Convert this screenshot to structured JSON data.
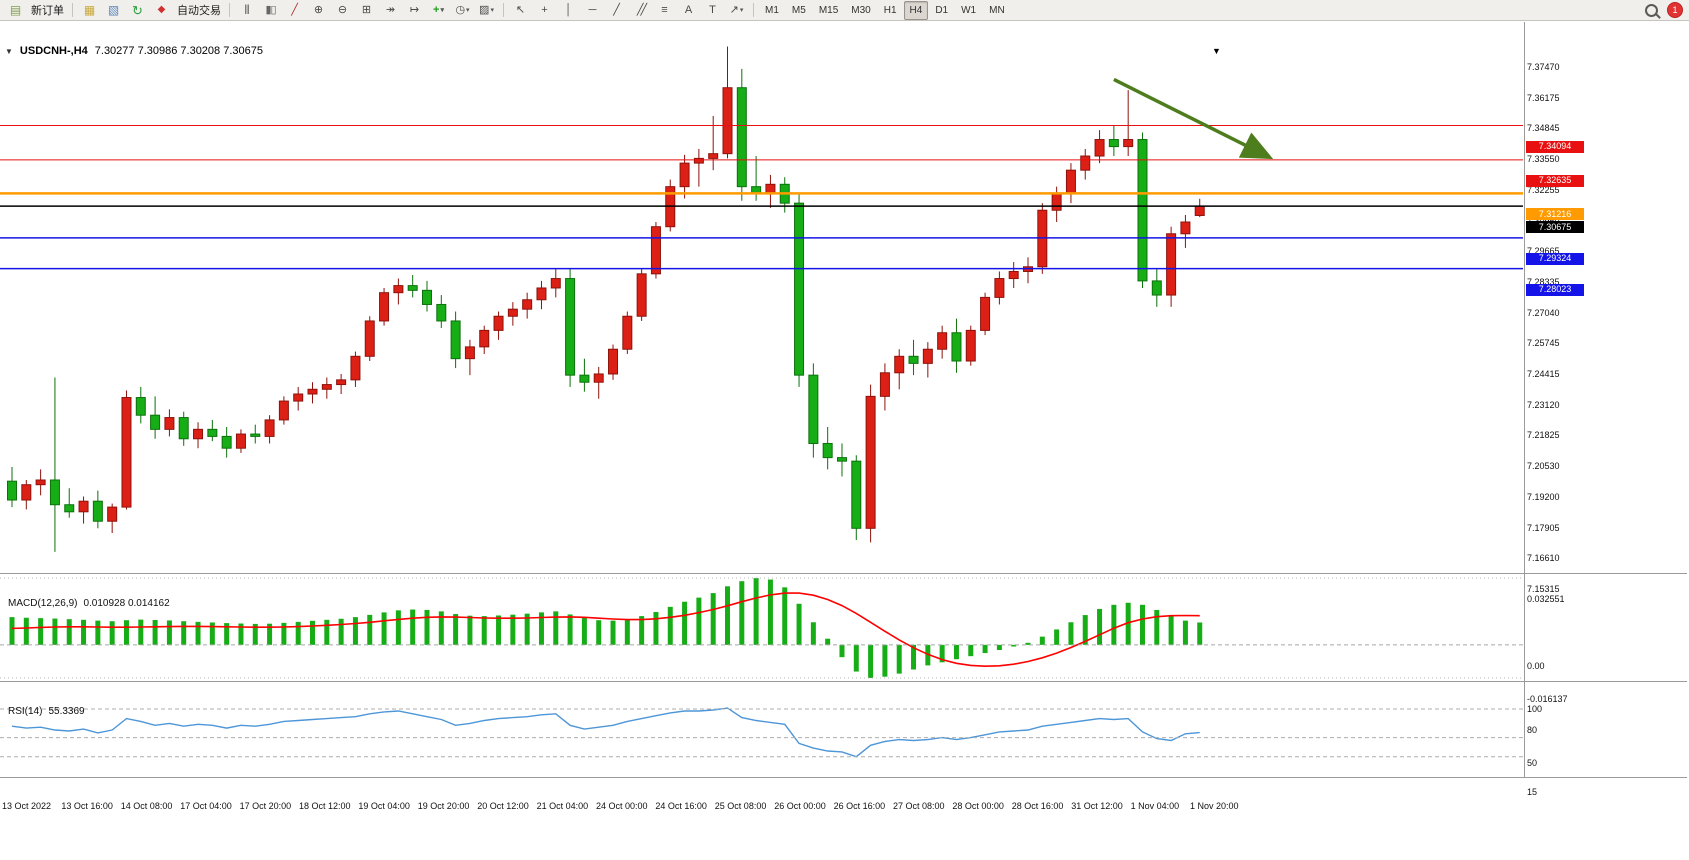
{
  "toolbar": {
    "new_order_label": "新订单",
    "autotrade_label": "自动交易",
    "notification_count": "1",
    "timeframes": [
      "M1",
      "M5",
      "M15",
      "M30",
      "H1",
      "H4",
      "D1",
      "W1",
      "MN"
    ],
    "active_timeframe": "H4",
    "icons": {
      "new_order": "▤",
      "charts": "▦",
      "profile": "▧",
      "refresh": "↻",
      "autotrade": "◆",
      "bar_chart": "|||",
      "candle_chart": "▮▯",
      "line_chart": "╱",
      "zoom_in": "⊕",
      "zoom_out": "⊖",
      "tile_windows": "⊞",
      "auto_scroll": "↠",
      "chart_shift": "↦",
      "indicators": "+",
      "periods": "◷",
      "templates": "▨",
      "cursor": "↖",
      "crosshair": "+",
      "vertical_line": "│",
      "horizontal_line": "─",
      "trendline": "╱",
      "channel": "╱╱",
      "fibonacci": "≡",
      "text": "A",
      "text_label": "T",
      "arrows": "↗",
      "dropdown": "▾",
      "oneclick_toggle": "▼",
      "shift_marker": "▼"
    }
  },
  "chart_window": {
    "symbol_tf": "USDCNH-,H4",
    "ohlc": "7.30277 7.30986 7.30208 7.30675"
  },
  "chart_data": [
    {
      "type": "candlestick",
      "symbol": "USDCNH-",
      "timeframe": "H4",
      "last_ohlc": {
        "open": "7.30277",
        "high": "7.30986",
        "low": "7.30208",
        "close": "7.30675"
      },
      "ylim": [
        7.15315,
        7.3747
      ],
      "y_ticks": [
        "7.37470",
        "7.36175",
        "7.34845",
        "7.33550",
        "7.32255",
        "7.30960",
        "7.29665",
        "7.28335",
        "7.27040",
        "7.25745",
        "7.24415",
        "7.23120",
        "7.21825",
        "7.20530",
        "7.19200",
        "7.17905",
        "7.16610",
        "7.15315"
      ],
      "x_labels": [
        "13 Oct 2022",
        "13 Oct 16:00",
        "14 Oct 08:00",
        "17 Oct 04:00",
        "17 Oct 20:00",
        "18 Oct 12:00",
        "19 Oct 04:00",
        "19 Oct 20:00",
        "20 Oct 12:00",
        "21 Oct 04:00",
        "24 Oct 00:00",
        "24 Oct 16:00",
        "25 Oct 08:00",
        "26 Oct 00:00",
        "26 Oct 16:00",
        "27 Oct 08:00",
        "28 Oct 00:00",
        "28 Oct 16:00",
        "31 Oct 12:00",
        "1 Nov 04:00",
        "1 Nov 20:00"
      ],
      "up_color": "#dd2015",
      "down_color": "#17ad17",
      "candles": [
        [
          7.19,
          7.196,
          7.179,
          7.182
        ],
        [
          7.182,
          7.1905,
          7.178,
          7.1885
        ],
        [
          7.1885,
          7.195,
          7.184,
          7.1905
        ],
        [
          7.1905,
          7.234,
          7.16,
          7.18
        ],
        [
          7.18,
          7.187,
          7.1745,
          7.177
        ],
        [
          7.177,
          7.1835,
          7.172,
          7.1815
        ],
        [
          7.1815,
          7.186,
          7.17,
          7.173
        ],
        [
          7.173,
          7.1805,
          7.168,
          7.179
        ],
        [
          7.179,
          7.2285,
          7.178,
          7.2255
        ],
        [
          7.2255,
          7.23,
          7.2145,
          7.218
        ],
        [
          7.218,
          7.226,
          7.208,
          7.212
        ],
        [
          7.212,
          7.2205,
          7.209,
          7.217
        ],
        [
          7.217,
          7.2195,
          7.205,
          7.208
        ],
        [
          7.208,
          7.215,
          7.204,
          7.212
        ],
        [
          7.212,
          7.216,
          7.207,
          7.209
        ],
        [
          7.209,
          7.213,
          7.2,
          7.204
        ],
        [
          7.204,
          7.212,
          7.202,
          7.21
        ],
        [
          7.21,
          7.214,
          7.206,
          7.209
        ],
        [
          7.209,
          7.218,
          7.206,
          7.216
        ],
        [
          7.216,
          7.226,
          7.214,
          7.224
        ],
        [
          7.224,
          7.23,
          7.22,
          7.227
        ],
        [
          7.227,
          7.232,
          7.223,
          7.229
        ],
        [
          7.229,
          7.234,
          7.225,
          7.231
        ],
        [
          7.231,
          7.2355,
          7.227,
          7.233
        ],
        [
          7.233,
          7.245,
          7.23,
          7.243
        ],
        [
          7.243,
          7.26,
          7.241,
          7.258
        ],
        [
          7.258,
          7.272,
          7.256,
          7.27
        ],
        [
          7.27,
          7.276,
          7.265,
          7.273
        ],
        [
          7.273,
          7.2775,
          7.268,
          7.271
        ],
        [
          7.271,
          7.275,
          7.262,
          7.265
        ],
        [
          7.265,
          7.269,
          7.255,
          7.258
        ],
        [
          7.258,
          7.262,
          7.238,
          7.242
        ],
        [
          7.242,
          7.25,
          7.235,
          7.247
        ],
        [
          7.247,
          7.256,
          7.244,
          7.254
        ],
        [
          7.254,
          7.262,
          7.25,
          7.26
        ],
        [
          7.26,
          7.266,
          7.256,
          7.263
        ],
        [
          7.263,
          7.27,
          7.259,
          7.267
        ],
        [
          7.267,
          7.275,
          7.263,
          7.272
        ],
        [
          7.272,
          7.28,
          7.268,
          7.276
        ],
        [
          7.276,
          7.2805,
          7.23,
          7.235
        ],
        [
          7.235,
          7.242,
          7.228,
          7.232
        ],
        [
          7.232,
          7.2385,
          7.225,
          7.2355
        ],
        [
          7.2355,
          7.248,
          7.233,
          7.246
        ],
        [
          7.246,
          7.262,
          7.244,
          7.26
        ],
        [
          7.26,
          7.28,
          7.258,
          7.278
        ],
        [
          7.278,
          7.3,
          7.276,
          7.298
        ],
        [
          7.298,
          7.318,
          7.296,
          7.315
        ],
        [
          7.315,
          7.3285,
          7.31,
          7.325
        ],
        [
          7.325,
          7.331,
          7.315,
          7.327
        ],
        [
          7.327,
          7.345,
          7.322,
          7.329
        ],
        [
          7.329,
          7.3745,
          7.327,
          7.357
        ],
        [
          7.357,
          7.365,
          7.309,
          7.315
        ],
        [
          7.315,
          7.328,
          7.309,
          7.312
        ],
        [
          7.312,
          7.32,
          7.306,
          7.316
        ],
        [
          7.316,
          7.319,
          7.304,
          7.308
        ],
        [
          7.308,
          7.312,
          7.23,
          7.235
        ],
        [
          7.235,
          7.24,
          7.2,
          7.206
        ],
        [
          7.206,
          7.213,
          7.195,
          7.2
        ],
        [
          7.2,
          7.206,
          7.192,
          7.1985
        ],
        [
          7.1985,
          7.201,
          7.165,
          7.17
        ],
        [
          7.17,
          7.231,
          7.164,
          7.226
        ],
        [
          7.226,
          7.24,
          7.22,
          7.236
        ],
        [
          7.236,
          7.246,
          7.229,
          7.243
        ],
        [
          7.243,
          7.25,
          7.235,
          7.24
        ],
        [
          7.24,
          7.249,
          7.234,
          7.246
        ],
        [
          7.246,
          7.256,
          7.242,
          7.253
        ],
        [
          7.253,
          7.259,
          7.236,
          7.241
        ],
        [
          7.241,
          7.256,
          7.239,
          7.254
        ],
        [
          7.254,
          7.27,
          7.252,
          7.268
        ],
        [
          7.268,
          7.279,
          7.265,
          7.276
        ],
        [
          7.276,
          7.283,
          7.272,
          7.279
        ],
        [
          7.279,
          7.285,
          7.274,
          7.281
        ],
        [
          7.281,
          7.308,
          7.278,
          7.305
        ],
        [
          7.305,
          7.315,
          7.3,
          7.312
        ],
        [
          7.312,
          7.325,
          7.308,
          7.322
        ],
        [
          7.322,
          7.331,
          7.318,
          7.328
        ],
        [
          7.328,
          7.339,
          7.325,
          7.335
        ],
        [
          7.335,
          7.341,
          7.328,
          7.332
        ],
        [
          7.332,
          7.356,
          7.328,
          7.335
        ],
        [
          7.335,
          7.338,
          7.272,
          7.275
        ],
        [
          7.275,
          7.28,
          7.264,
          7.269
        ],
        [
          7.269,
          7.298,
          7.264,
          7.295
        ],
        [
          7.295,
          7.303,
          7.289,
          7.3
        ],
        [
          7.30277,
          7.30986,
          7.30208,
          7.30675
        ]
      ],
      "levels": [
        {
          "price": 7.34094,
          "label": "7.34094",
          "color": "#e81010",
          "width": 1,
          "style": "solid"
        },
        {
          "price": 7.32635,
          "label": "7.32635",
          "color": "#e81010",
          "width": 1,
          "style": "solid"
        },
        {
          "price": 7.31216,
          "label": "7.31216",
          "color": "#ff9b00",
          "width": 2.5,
          "style": "solid"
        },
        {
          "price": 7.30675,
          "label": "7.30675",
          "color": "#000000",
          "width": 1.5,
          "style": "solid"
        },
        {
          "price": 7.29324,
          "label": "7.29324",
          "color": "#1414e8",
          "width": 1.5,
          "style": "solid"
        },
        {
          "price": 7.28023,
          "label": "7.28023",
          "color": "#1414e8",
          "width": 1.5,
          "style": "solid"
        }
      ],
      "annotation_arrow": {
        "from": {
          "bar": 78.0,
          "price": 7.3605
        },
        "to": {
          "bar": 88.7,
          "price": 7.328
        },
        "color": "#4e7d1e"
      }
    },
    {
      "type": "macd",
      "label": "MACD(12,26,9)",
      "values_label": "0.010928 0.014162",
      "main_value": 0.010928,
      "signal_value": 0.014162,
      "ylim": [
        -0.016137,
        0.032551
      ],
      "y_ticks": [
        "0.032551",
        "0.00",
        "-0.016137"
      ],
      "hist_color": "#17ad17",
      "signal_color": "#ff0000",
      "histogram": [
        0.0135,
        0.0132,
        0.013,
        0.0128,
        0.0125,
        0.0122,
        0.0118,
        0.0115,
        0.012,
        0.0123,
        0.0121,
        0.0119,
        0.0115,
        0.0112,
        0.0109,
        0.0106,
        0.0104,
        0.0102,
        0.0103,
        0.0107,
        0.0112,
        0.0117,
        0.0122,
        0.0127,
        0.0135,
        0.0146,
        0.0158,
        0.0168,
        0.0172,
        0.017,
        0.0163,
        0.015,
        0.0142,
        0.014,
        0.0143,
        0.0147,
        0.0152,
        0.0158,
        0.0163,
        0.0148,
        0.0132,
        0.012,
        0.0118,
        0.0125,
        0.014,
        0.016,
        0.0185,
        0.021,
        0.023,
        0.0252,
        0.0285,
        0.031,
        0.0325,
        0.0318,
        0.028,
        0.02,
        0.011,
        0.003,
        -0.006,
        -0.013,
        -0.0161,
        -0.0155,
        -0.014,
        -0.012,
        -0.01,
        -0.0085,
        -0.007,
        -0.0055,
        -0.004,
        -0.0025,
        -0.0008,
        0.001,
        0.004,
        0.0075,
        0.011,
        0.0145,
        0.0175,
        0.0195,
        0.0205,
        0.0195,
        0.017,
        0.014,
        0.0118,
        0.0109
      ],
      "signal": [
        0.008,
        0.0082,
        0.0085,
        0.0087,
        0.0088,
        0.0088,
        0.0087,
        0.0086,
        0.0086,
        0.0087,
        0.0088,
        0.0089,
        0.009,
        0.009,
        0.0089,
        0.0088,
        0.0087,
        0.0086,
        0.0086,
        0.0087,
        0.0089,
        0.0092,
        0.0095,
        0.0099,
        0.0104,
        0.011,
        0.0117,
        0.0124,
        0.013,
        0.0134,
        0.0136,
        0.0135,
        0.0133,
        0.0131,
        0.013,
        0.013,
        0.0131,
        0.0133,
        0.0135,
        0.0136,
        0.0134,
        0.013,
        0.0126,
        0.0123,
        0.0123,
        0.0127,
        0.0134,
        0.0144,
        0.0157,
        0.0172,
        0.019,
        0.021,
        0.0228,
        0.0243,
        0.0252,
        0.0252,
        0.0242,
        0.0221,
        0.0191,
        0.0153,
        0.011,
        0.0066,
        0.0024,
        -0.0014,
        -0.0046,
        -0.0072,
        -0.009,
        -0.01,
        -0.0104,
        -0.0102,
        -0.0094,
        -0.0081,
        -0.0063,
        -0.004,
        -0.0013,
        0.0017,
        0.0049,
        0.0081,
        0.0108,
        0.0126,
        0.0137,
        0.0142,
        0.0143,
        0.0142
      ]
    },
    {
      "type": "rsi",
      "label": "RSI(14)",
      "value_label": "55.3369",
      "current_value": 55.3369,
      "ylim": [
        15,
        100
      ],
      "y_ticks": [
        "100",
        "80",
        "50",
        "15"
      ],
      "level_lines": [
        80,
        50,
        30
      ],
      "line_color": "#4d96d8",
      "values": [
        62,
        60,
        61,
        58,
        57,
        59,
        55,
        58,
        70,
        67,
        63,
        65,
        62,
        64,
        63,
        60,
        63,
        62,
        64,
        67,
        68,
        69,
        70,
        71,
        72,
        75,
        77,
        78,
        75,
        72,
        69,
        63,
        65,
        68,
        70,
        71,
        72,
        74,
        75,
        63,
        59,
        61,
        63,
        67,
        70,
        73,
        76,
        78,
        78,
        79,
        81,
        71,
        68,
        66,
        64,
        44,
        39,
        36,
        35,
        30,
        42,
        46,
        48,
        47,
        48,
        50,
        48,
        50,
        53,
        56,
        57,
        58,
        62,
        64,
        66,
        68,
        70,
        69,
        70,
        56,
        49,
        47,
        54,
        55.34
      ]
    }
  ]
}
